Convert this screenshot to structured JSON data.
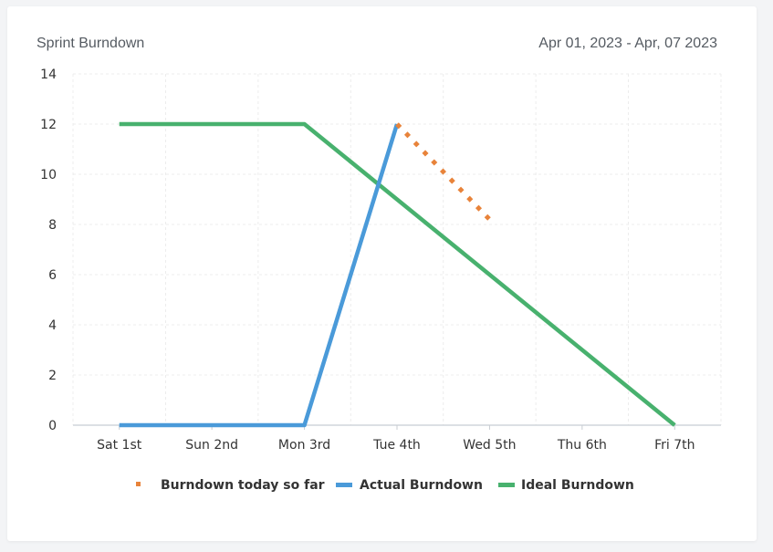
{
  "card": {
    "title": "Sprint Burndown",
    "date_range": "Apr 01, 2023 - Apr, 07 2023"
  },
  "chart_data": {
    "type": "line",
    "categories": [
      "Sat 1st",
      "Sun 2nd",
      "Mon 3rd",
      "Tue 4th",
      "Wed 5th",
      "Thu 6th",
      "Fri 7th"
    ],
    "ylim": [
      0,
      14
    ],
    "yticks": [
      0,
      2,
      4,
      6,
      8,
      10,
      12,
      14
    ],
    "grid": true,
    "legend_position": "bottom",
    "series": [
      {
        "name": "Burndown today so far",
        "color": "#e8833a",
        "style": "dotted",
        "points": [
          [
            3,
            12
          ],
          [
            4,
            8.2
          ]
        ]
      },
      {
        "name": "Actual Burndown",
        "color": "#4a9ad9",
        "style": "solid",
        "points": [
          [
            0,
            0
          ],
          [
            1,
            0
          ],
          [
            2,
            0
          ],
          [
            3,
            12
          ]
        ]
      },
      {
        "name": "Ideal Burndown",
        "color": "#48b16e",
        "style": "solid",
        "points": [
          [
            0,
            12
          ],
          [
            1,
            12
          ],
          [
            2,
            12
          ],
          [
            3,
            9
          ],
          [
            4,
            6
          ],
          [
            5,
            3
          ],
          [
            6,
            0
          ]
        ]
      }
    ]
  }
}
